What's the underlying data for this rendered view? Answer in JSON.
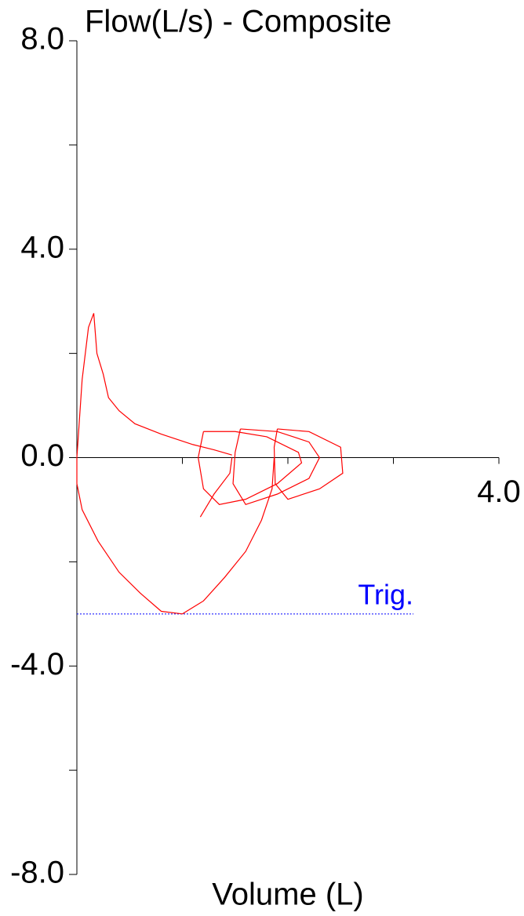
{
  "chart_data": {
    "type": "line",
    "title": "Flow(L/s)  -  Composite",
    "x_label": "Volume (L)",
    "xlim": [
      0,
      4.0
    ],
    "ylim": [
      -8.0,
      8.0
    ],
    "xticks": [
      1,
      2,
      3,
      {
        "value": 4,
        "label": "4.0"
      }
    ],
    "yticks": [
      {
        "value": 8,
        "label": "8.0"
      },
      6,
      {
        "value": 4,
        "label": "4.0"
      },
      2,
      {
        "value": 0,
        "label": "0.0"
      },
      -2,
      {
        "value": -4,
        "label": "-4.0"
      },
      -6,
      {
        "value": -8,
        "label": "-8.0"
      }
    ],
    "unlabeled_yticks": [
      6,
      2,
      -2,
      -6
    ],
    "unlabeled_xticks": [
      1,
      2,
      3
    ],
    "grid": false,
    "trigger": {
      "label": "Trig.",
      "value": -3.0,
      "x_end": 3.19,
      "color": "#0000ff"
    },
    "series": [
      {
        "color": "#ff0000",
        "x": [
          1.87,
          1.85,
          1.75,
          1.6,
          1.4,
          1.2,
          1.0,
          0.8,
          0.6,
          0.4,
          0.2,
          0.05,
          0,
          0,
          0.05,
          0.11,
          0.16,
          0.19,
          0.25,
          0.3,
          0.4,
          0.55,
          0.8,
          1.1,
          1.3,
          1.47
        ],
        "y": [
          0.0,
          -0.6,
          -1.2,
          -1.8,
          -2.3,
          -2.75,
          -3.0,
          -2.95,
          -2.6,
          -2.2,
          -1.6,
          -1.0,
          -0.5,
          0,
          1.5,
          2.5,
          2.77,
          2.0,
          1.6,
          1.15,
          0.9,
          0.65,
          0.45,
          0.25,
          0.15,
          0.05
        ]
      },
      {
        "color": "#ff0000",
        "x": [
          1.2,
          1.5,
          1.8,
          2.1,
          2.13,
          1.9,
          1.6,
          1.35,
          1.2,
          1.15,
          1.2
        ],
        "y": [
          0.5,
          0.5,
          0.4,
          0.1,
          -0.1,
          -0.5,
          -0.8,
          -0.9,
          -0.6,
          0,
          0.5
        ]
      },
      {
        "color": "#ff0000",
        "x": [
          1.55,
          1.9,
          2.2,
          2.3,
          2.2,
          1.9,
          1.6,
          1.48,
          1.5,
          1.55
        ],
        "y": [
          0.55,
          0.5,
          0.3,
          0.0,
          -0.4,
          -0.7,
          -0.9,
          -0.5,
          0.1,
          0.55
        ]
      },
      {
        "color": "#ff0000",
        "x": [
          1.9,
          2.2,
          2.5,
          2.52,
          2.3,
          2.0,
          1.88,
          1.87,
          1.9
        ],
        "y": [
          0.55,
          0.5,
          0.2,
          -0.3,
          -0.6,
          -0.8,
          -0.5,
          0.2,
          0.55
        ]
      },
      {
        "color": "#ff0000",
        "x": [
          1.17,
          1.3,
          1.45,
          1.47
        ],
        "y": [
          -1.14,
          -0.7,
          -0.3,
          0.0
        ]
      }
    ]
  }
}
